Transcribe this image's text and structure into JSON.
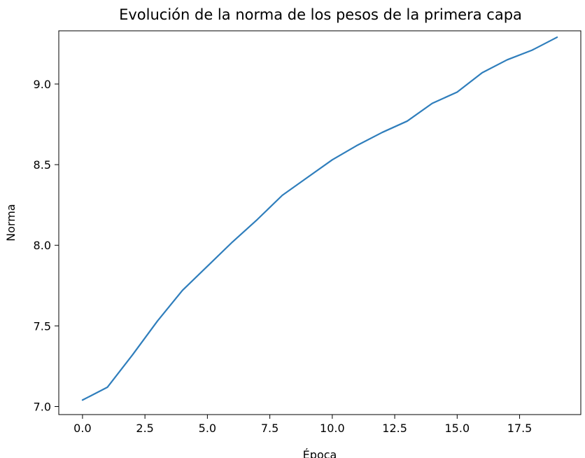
{
  "chart_data": {
    "type": "line",
    "title": "Evolución de la norma de los pesos de la primera capa",
    "xlabel": "Época",
    "ylabel": "Norma",
    "xlim": [
      -0.95,
      19.95
    ],
    "ylim": [
      6.95,
      9.33
    ],
    "xticks": [
      0.0,
      2.5,
      5.0,
      7.5,
      10.0,
      12.5,
      15.0,
      17.5
    ],
    "xtick_labels": [
      "0.0",
      "2.5",
      "5.0",
      "7.5",
      "10.0",
      "12.5",
      "15.0",
      "17.5"
    ],
    "yticks": [
      7.0,
      7.5,
      8.0,
      8.5,
      9.0
    ],
    "ytick_labels": [
      "7.0",
      "7.5",
      "8.0",
      "8.5",
      "9.0"
    ],
    "grid": false,
    "line_color": "#2f7ebc",
    "series": [
      {
        "x": [
          0,
          1,
          2,
          3,
          4,
          5,
          6,
          7,
          8,
          9,
          10,
          11,
          12,
          13,
          14,
          15,
          16,
          17,
          18,
          19
        ],
        "y": [
          7.04,
          7.12,
          7.32,
          7.53,
          7.72,
          7.87,
          8.02,
          8.16,
          8.31,
          8.42,
          8.53,
          8.62,
          8.7,
          8.77,
          8.88,
          8.95,
          9.07,
          9.15,
          9.21,
          9.29
        ]
      }
    ]
  }
}
